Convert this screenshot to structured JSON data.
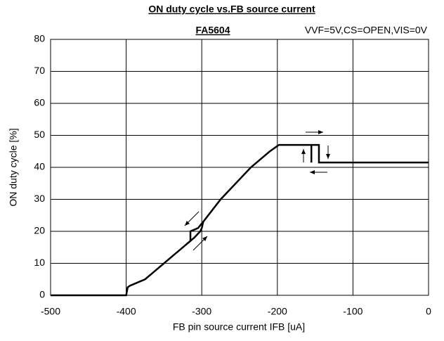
{
  "chart_data": {
    "type": "line",
    "title": "ON duty cycle vs.FB source current",
    "subtitle": "FA5604",
    "annotation": "VVF=5V,CS=OPEN,VIS=0V",
    "x_label": "FB pin source current IFB [uA]",
    "y_label": "ON duty cycle [%]",
    "series": [
      {
        "color": "#000000",
        "x": [
          -500,
          -400,
          -398,
          -395,
          -385,
          -375,
          -365,
          -350,
          -335,
          -320,
          -310,
          -302,
          -300,
          -298,
          -275,
          -235,
          -225,
          -210,
          -198,
          -145,
          -145,
          0
        ],
        "values": [
          0,
          0,
          2.5,
          3,
          4,
          5,
          7,
          10,
          13,
          16,
          18,
          20,
          21,
          23,
          30,
          40,
          42,
          45,
          47,
          47,
          41.5,
          41.5
        ]
      },
      {
        "color": "#000000",
        "x": [
          -155,
          -155
        ],
        "values": [
          41.5,
          47
        ]
      },
      {
        "color": "#000000",
        "x": [
          -298,
          -305,
          -315,
          -315,
          -320
        ],
        "values": [
          23,
          21,
          20,
          17,
          16
        ]
      }
    ],
    "xlim": [
      -500,
      0
    ],
    "xticks": [
      -500,
      -400,
      -300,
      -200,
      -100,
      0
    ],
    "ylim": [
      0,
      80
    ],
    "yticks": [
      0,
      10,
      20,
      30,
      40,
      50,
      60,
      70,
      80
    ],
    "grid": true
  }
}
